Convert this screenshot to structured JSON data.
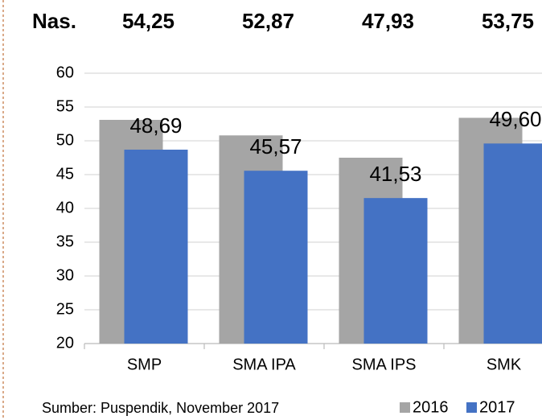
{
  "chart_data": {
    "type": "bar",
    "header_label": "Nas.",
    "header_values": [
      "54,25",
      "52,87",
      "47,93",
      "53,75"
    ],
    "categories": [
      "SMP",
      "SMA IPA",
      "SMA IPS",
      "SMK"
    ],
    "series": [
      {
        "name": "2016",
        "color": "#a5a5a5",
        "values": [
          53.1,
          50.8,
          47.5,
          53.4
        ]
      },
      {
        "name": "2017",
        "color": "#4472c4",
        "values": [
          48.69,
          45.57,
          41.53,
          49.6
        ],
        "value_labels": [
          "48,69",
          "45,57",
          "41,53",
          "49,60"
        ]
      }
    ],
    "ylim": [
      20,
      60
    ],
    "yticks": [
      20,
      25,
      30,
      35,
      40,
      45,
      50,
      55,
      60
    ],
    "grid": true,
    "source": "Sumber: Puspendik, November 2017"
  }
}
